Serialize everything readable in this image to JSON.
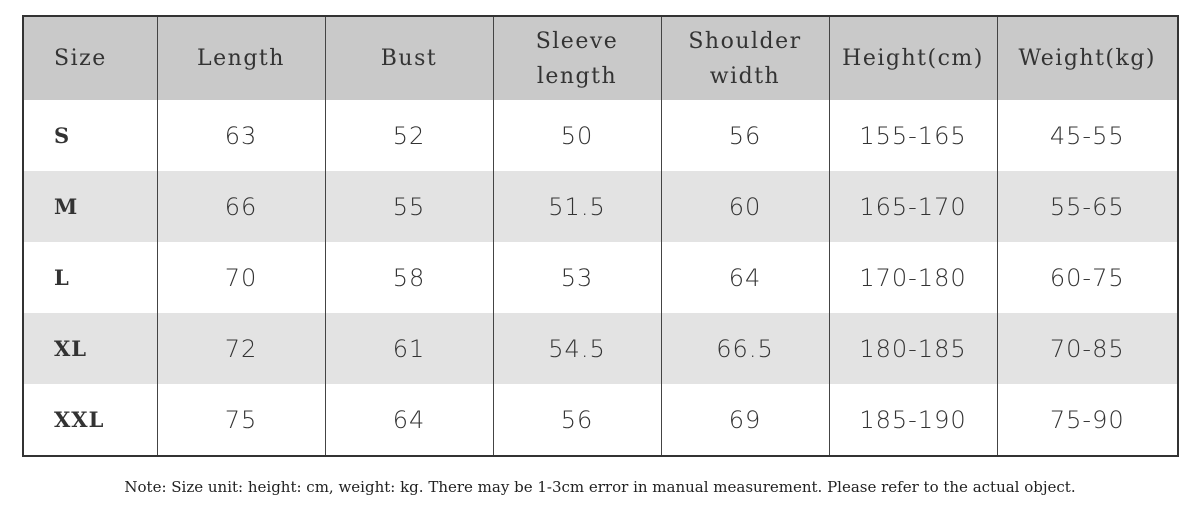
{
  "table": {
    "headers": [
      "Size",
      "Length",
      "Bust",
      "Sleeve length",
      "Shoulder width",
      "Height(cm)",
      "Weight(kg)"
    ],
    "rows": [
      [
        "S",
        "63",
        "52",
        "50",
        "56",
        "155-165",
        "45-55"
      ],
      [
        "M",
        "66",
        "55",
        "51.5",
        "60",
        "165-170",
        "55-65"
      ],
      [
        "L",
        "70",
        "58",
        "53",
        "64",
        "170-180",
        "60-75"
      ],
      [
        "XL",
        "72",
        "61",
        "54.5",
        "66.5",
        "180-185",
        "70-85"
      ],
      [
        "XXL",
        "75",
        "64",
        "56",
        "69",
        "185-190",
        "75-90"
      ]
    ]
  },
  "note": "Note: Size unit: height: cm, weight: kg. There may be 1-3cm error in manual measurement. Please refer to the actual object."
}
